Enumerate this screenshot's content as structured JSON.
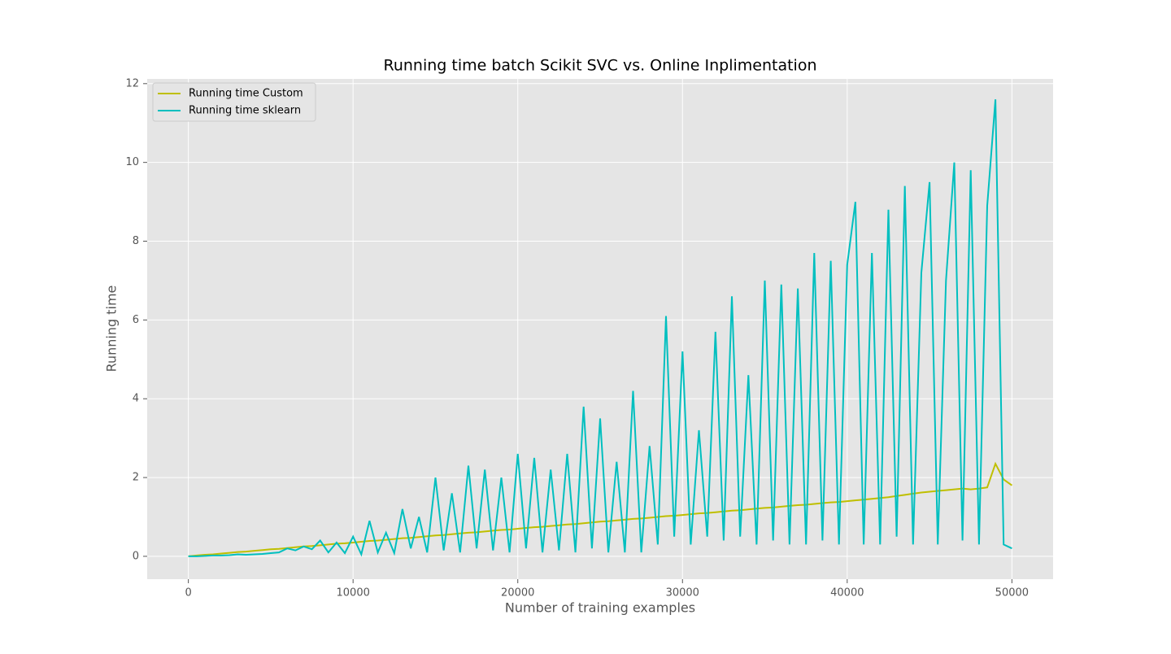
{
  "chart_data": {
    "type": "line",
    "title": "Running time batch Scikit SVC vs. Online Inplimentation",
    "x_label": "Number of training examples",
    "y_label": "Running time",
    "x": [
      0,
      500,
      1000,
      1500,
      2000,
      2500,
      3000,
      3500,
      4000,
      4500,
      5000,
      5500,
      6000,
      6500,
      7000,
      7500,
      8000,
      8500,
      9000,
      9500,
      10000,
      10500,
      11000,
      11500,
      12000,
      12500,
      13000,
      13500,
      14000,
      14500,
      15000,
      15500,
      16000,
      16500,
      17000,
      17500,
      18000,
      18500,
      19000,
      19500,
      20000,
      20500,
      21000,
      21500,
      22000,
      22500,
      23000,
      23500,
      24000,
      24500,
      25000,
      25500,
      26000,
      26500,
      27000,
      27500,
      28000,
      28500,
      29000,
      29500,
      30000,
      30500,
      31000,
      31500,
      32000,
      32500,
      33000,
      33500,
      34000,
      34500,
      35000,
      35500,
      36000,
      36500,
      37000,
      37500,
      38000,
      38500,
      39000,
      39500,
      40000,
      40500,
      41000,
      41500,
      42000,
      42500,
      43000,
      43500,
      44000,
      44500,
      45000,
      45500,
      46000,
      46500,
      47000,
      47500,
      48000,
      48500,
      49000,
      49500,
      50000
    ],
    "series": [
      {
        "name": "Running time Custom",
        "color": "#bfbf00",
        "values": [
          0,
          0.02,
          0.04,
          0.05,
          0.07,
          0.09,
          0.11,
          0.12,
          0.14,
          0.16,
          0.18,
          0.19,
          0.21,
          0.23,
          0.25,
          0.26,
          0.28,
          0.3,
          0.32,
          0.33,
          0.35,
          0.37,
          0.39,
          0.4,
          0.42,
          0.44,
          0.46,
          0.47,
          0.49,
          0.51,
          0.53,
          0.54,
          0.56,
          0.58,
          0.6,
          0.61,
          0.63,
          0.65,
          0.67,
          0.68,
          0.7,
          0.72,
          0.74,
          0.75,
          0.77,
          0.79,
          0.81,
          0.82,
          0.84,
          0.86,
          0.88,
          0.89,
          0.91,
          0.93,
          0.95,
          0.96,
          0.98,
          1.0,
          1.02,
          1.03,
          1.05,
          1.07,
          1.09,
          1.1,
          1.12,
          1.14,
          1.16,
          1.17,
          1.19,
          1.21,
          1.23,
          1.24,
          1.26,
          1.28,
          1.3,
          1.31,
          1.33,
          1.35,
          1.37,
          1.38,
          1.4,
          1.42,
          1.44,
          1.46,
          1.48,
          1.5,
          1.53,
          1.56,
          1.59,
          1.62,
          1.64,
          1.66,
          1.68,
          1.7,
          1.72,
          1.7,
          1.72,
          1.75,
          2.35,
          1.95,
          1.8
        ]
      },
      {
        "name": "Running time sklearn",
        "color": "#00bfbf",
        "values": [
          0,
          0,
          0.01,
          0.02,
          0.02,
          0.03,
          0.05,
          0.04,
          0.05,
          0.06,
          0.08,
          0.1,
          0.2,
          0.15,
          0.25,
          0.18,
          0.4,
          0.1,
          0.35,
          0.08,
          0.5,
          0.05,
          0.9,
          0.1,
          0.6,
          0.08,
          1.2,
          0.2,
          1.0,
          0.1,
          2.0,
          0.15,
          1.6,
          0.1,
          2.3,
          0.2,
          2.2,
          0.15,
          2.0,
          0.1,
          2.6,
          0.2,
          2.5,
          0.1,
          2.2,
          0.15,
          2.6,
          0.1,
          3.8,
          0.2,
          3.5,
          0.1,
          2.4,
          0.1,
          4.2,
          0.1,
          2.8,
          0.3,
          6.1,
          0.5,
          5.2,
          0.3,
          3.2,
          0.5,
          5.7,
          0.4,
          6.6,
          0.5,
          4.6,
          0.3,
          7.0,
          0.4,
          6.9,
          0.3,
          6.8,
          0.3,
          7.7,
          0.4,
          7.5,
          0.3,
          7.4,
          9.0,
          0.3,
          7.7,
          0.3,
          8.8,
          0.5,
          9.4,
          0.3,
          7.2,
          9.5,
          0.3,
          7.0,
          10.0,
          0.4,
          9.8,
          0.3,
          8.9,
          11.6,
          0.3,
          0.2
        ]
      }
    ],
    "xlim": [
      -2500,
      52500
    ],
    "ylim": [
      -0.58,
      12.12
    ],
    "xticks": [
      0,
      10000,
      20000,
      30000,
      40000,
      50000
    ],
    "yticks": [
      0,
      2,
      4,
      6,
      8,
      10,
      12
    ],
    "grid": true,
    "legend": "upper left"
  }
}
